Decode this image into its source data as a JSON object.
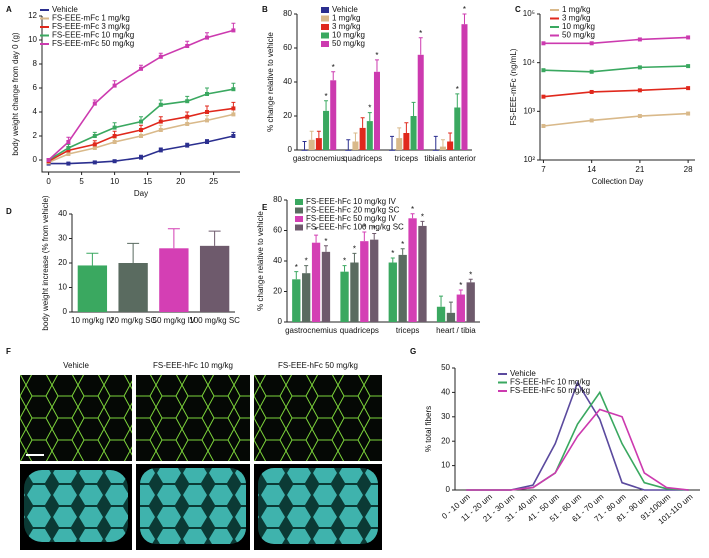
{
  "chart_data": [
    {
      "type": "line",
      "panel": "A",
      "x_label": "Day",
      "y_label": "body weight change from day 0 (g)",
      "x": [
        0,
        3,
        7,
        10,
        14,
        17,
        21,
        24,
        28
      ],
      "xlim": [
        -1,
        29
      ],
      "xticks": [
        0,
        5,
        10,
        15,
        20,
        25
      ],
      "ylim": [
        -1,
        12
      ],
      "yticks": [
        0,
        2,
        4,
        6,
        8,
        10,
        12
      ],
      "series": [
        {
          "name": "Vehicle",
          "color": "#2b2f8f",
          "values": [
            -0.3,
            -0.3,
            -0.2,
            -0.1,
            0.2,
            0.8,
            1.2,
            1.5,
            2.0
          ],
          "errors": [
            0.1,
            0.1,
            0.1,
            0.1,
            0.2,
            0.2,
            0.2,
            0.2,
            0.3
          ]
        },
        {
          "name": "FS-EEE-mFc 1 mg/kg",
          "color": "#d9b98a",
          "values": [
            -0.2,
            0.5,
            1.0,
            1.5,
            2.0,
            2.5,
            3.0,
            3.3,
            3.8
          ],
          "errors": [
            0.1,
            0.3,
            0.3,
            0.3,
            0.4,
            0.4,
            0.4,
            0.4,
            0.5
          ]
        },
        {
          "name": "FS-EEE-mFc 3 mg/kg",
          "color": "#e0281c",
          "values": [
            -0.1,
            0.8,
            1.3,
            2.0,
            2.5,
            3.2,
            3.6,
            4.0,
            4.3
          ],
          "errors": [
            0.1,
            0.3,
            0.3,
            0.4,
            0.4,
            0.4,
            0.4,
            0.5,
            0.5
          ]
        },
        {
          "name": "FS-EEE-mFc 10 mg/kg",
          "color": "#3aa860",
          "values": [
            0,
            1.0,
            2.0,
            2.7,
            3.2,
            4.6,
            4.9,
            5.5,
            5.9
          ],
          "errors": [
            0.1,
            0.3,
            0.3,
            0.4,
            0.4,
            0.4,
            0.4,
            0.5,
            0.5
          ]
        },
        {
          "name": "FS-EEE-mFc 50 mg/kg",
          "color": "#cc3aaf",
          "values": [
            0,
            1.5,
            4.7,
            6.2,
            7.6,
            8.6,
            9.5,
            10.2,
            10.8
          ],
          "errors": [
            0.1,
            0.4,
            0.3,
            0.4,
            0.3,
            0.3,
            0.4,
            0.4,
            0.6
          ]
        }
      ]
    },
    {
      "type": "groupbar",
      "panel": "B",
      "y_label": "% change relative to vehicle",
      "categories": [
        "gastrocnemius",
        "quadriceps",
        "triceps",
        "tibialis anterior"
      ],
      "ylim": [
        0,
        80
      ],
      "yticks": [
        0,
        20,
        40,
        60,
        80
      ],
      "series": [
        {
          "name": "Vehicle",
          "color": "#2b2f8f",
          "values": [
            0,
            0,
            0,
            0
          ],
          "errors": [
            5,
            6,
            8,
            8
          ]
        },
        {
          "name": "1 mg/kg",
          "color": "#d9b98a",
          "values": [
            6,
            5,
            7,
            2
          ],
          "errors": [
            5,
            5,
            6,
            4
          ]
        },
        {
          "name": "3 mg/kg",
          "color": "#e0281c",
          "values": [
            7,
            13,
            10,
            5
          ],
          "errors": [
            4,
            6,
            6,
            5
          ]
        },
        {
          "name": "10 mg/kg",
          "color": "#3aa860",
          "values": [
            23,
            17,
            20,
            25
          ],
          "errors": [
            6,
            5,
            8,
            8
          ]
        },
        {
          "name": "50 mg/kg",
          "color": "#cc3aaf",
          "values": [
            41,
            46,
            56,
            74
          ],
          "errors": [
            5,
            7,
            10,
            6
          ]
        }
      ],
      "annotations": [
        {
          "text": "*",
          "series": 3,
          "category": 0
        },
        {
          "text": "*",
          "series": 4,
          "category": 0
        },
        {
          "text": "*",
          "series": 3,
          "category": 1
        },
        {
          "text": "*",
          "series": 4,
          "category": 1
        },
        {
          "text": "*",
          "series": 4,
          "category": 2
        },
        {
          "text": "*",
          "series": 3,
          "category": 3
        },
        {
          "text": "*",
          "series": 4,
          "category": 3
        }
      ]
    },
    {
      "type": "line",
      "panel": "C",
      "x_label": "Collection Day",
      "y_label": "FS-EEE-mFc (ng/mL)",
      "log_scale": true,
      "x": [
        7,
        14,
        21,
        28
      ],
      "xlim": [
        6.5,
        29
      ],
      "xticks": [
        7,
        14,
        21,
        28
      ],
      "ylim": [
        100,
        100000
      ],
      "yticks": [
        {
          "value": 100,
          "label": "10²"
        },
        {
          "value": 1000,
          "label": "10³"
        },
        {
          "value": 10000,
          "label": "10⁴"
        },
        {
          "value": 100000,
          "label": "10⁵"
        }
      ],
      "series": [
        {
          "name": "1 mg/kg",
          "color": "#d9b98a",
          "values": [
            500,
            650,
            800,
            900
          ]
        },
        {
          "name": "3 mg/kg",
          "color": "#e0281c",
          "values": [
            2000,
            2500,
            2700,
            3000
          ]
        },
        {
          "name": "10 mg/kg",
          "color": "#3aa860",
          "values": [
            7000,
            6500,
            8000,
            8500
          ]
        },
        {
          "name": "50 mg/kg",
          "color": "#cc3aaf",
          "values": [
            25000,
            25000,
            30000,
            33000
          ]
        }
      ]
    },
    {
      "type": "bar",
      "panel": "D",
      "y_label": "body weight increase (% from vehicle)",
      "categories": [
        "10 mg/kg IV",
        "20 mg/kg SC",
        "50 mg/kg IV",
        "100 mg/kg SC"
      ],
      "values": [
        19,
        20,
        26,
        27
      ],
      "errors": [
        5,
        8,
        8,
        6
      ],
      "colors": [
        "#3aa860",
        "#5a6b60",
        "#d43fb4",
        "#6e5a6c"
      ],
      "ylim": [
        0,
        40
      ],
      "yticks": [
        0,
        10,
        20,
        30,
        40
      ]
    },
    {
      "type": "groupbar",
      "panel": "E",
      "y_label": "% change relative to vehicle",
      "categories": [
        "gastrocnemius",
        "quadriceps",
        "triceps",
        "heart / tibia"
      ],
      "ylim": [
        0,
        80
      ],
      "yticks": [
        0,
        20,
        40,
        60,
        80
      ],
      "series": [
        {
          "name": "FS-EEE-hFc 10 mg/kg IV",
          "color": "#3aa860",
          "values": [
            28,
            33,
            39,
            10
          ],
          "errors": [
            5,
            4,
            3,
            7
          ]
        },
        {
          "name": "FS-EEE-hFc 20 mg/kg SC",
          "color": "#5a6b60",
          "values": [
            32,
            39,
            44,
            6
          ],
          "errors": [
            5,
            6,
            4,
            7
          ]
        },
        {
          "name": "FS-EEE-hFc 50 mg/kg IV",
          "color": "#d43fb4",
          "values": [
            52,
            53,
            68,
            18
          ],
          "errors": [
            5,
            6,
            3,
            3
          ]
        },
        {
          "name": "FS-EEE-hFc 100 mg/kg SC",
          "color": "#6e5a6c",
          "values": [
            46,
            54,
            63,
            26
          ],
          "errors": [
            4,
            4,
            3,
            2
          ]
        }
      ],
      "annotations": [
        {
          "text": "*",
          "series": 0,
          "category": 0
        },
        {
          "text": "*",
          "series": 1,
          "category": 0
        },
        {
          "text": "*",
          "series": 2,
          "category": 0
        },
        {
          "text": "*",
          "series": 3,
          "category": 0
        },
        {
          "text": "*",
          "series": 0,
          "category": 1
        },
        {
          "text": "*",
          "series": 1,
          "category": 1
        },
        {
          "text": "*",
          "series": 2,
          "category": 1
        },
        {
          "text": "*",
          "series": 3,
          "category": 1
        },
        {
          "text": "*",
          "series": 0,
          "category": 2
        },
        {
          "text": "*",
          "series": 1,
          "category": 2
        },
        {
          "text": "*",
          "series": 2,
          "category": 2
        },
        {
          "text": "*",
          "series": 3,
          "category": 2
        },
        {
          "text": "*",
          "series": 2,
          "category": 3
        },
        {
          "text": "*",
          "series": 3,
          "category": 3
        }
      ]
    },
    {
      "type": "image",
      "panel": "F",
      "columns": [
        "Vehicle",
        "FS-EEE-hFc 10 mg/kg",
        "FS-EEE-hFc 50 mg/kg"
      ]
    },
    {
      "type": "line",
      "panel": "G",
      "y_label": "% total fibers",
      "categories": [
        "0 - 10 um",
        "11 - 20 um",
        "21 - 30 um",
        "31 - 40 um",
        "41 - 50 um",
        "51 - 60 um",
        "61 - 70 um",
        "71 - 80 um",
        "81 - 90 um",
        "91-100um",
        "101-110 um"
      ],
      "ylim": [
        0,
        50
      ],
      "yticks": [
        0,
        10,
        20,
        30,
        40,
        50
      ],
      "series": [
        {
          "name": "Vehicle",
          "color": "#5b4a9e",
          "values": [
            0,
            0,
            0,
            2,
            19,
            44,
            29,
            3,
            0,
            0,
            0
          ]
        },
        {
          "name": "FS-EEE-hFc 10 mg/kg",
          "color": "#3aa860",
          "values": [
            0,
            0,
            0,
            1,
            7,
            27,
            40,
            19,
            3,
            0.5,
            0
          ]
        },
        {
          "name": "FS-EEE-hFc 50 mg/kg",
          "color": "#cc3aaf",
          "values": [
            0,
            0,
            0,
            1,
            7,
            22,
            33,
            30,
            7,
            1,
            0
          ]
        }
      ]
    }
  ]
}
